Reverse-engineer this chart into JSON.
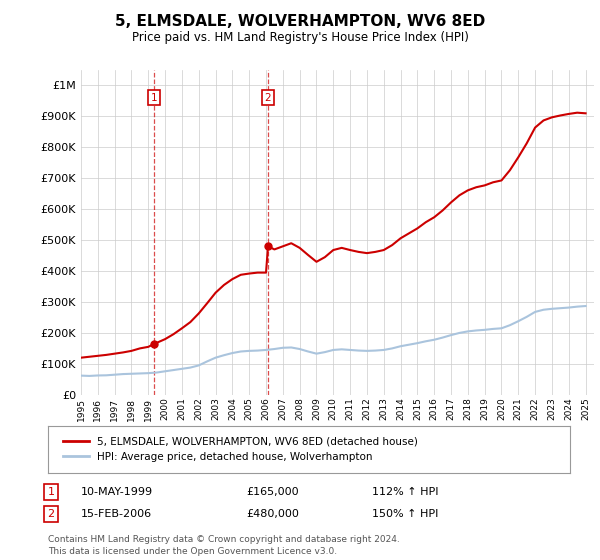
{
  "title": "5, ELMSDALE, WOLVERHAMPTON, WV6 8ED",
  "subtitle": "Price paid vs. HM Land Registry's House Price Index (HPI)",
  "background_color": "#ffffff",
  "grid_color": "#cccccc",
  "hpi_color": "#aac4dd",
  "price_color": "#cc0000",
  "sale1_year": 1999.36,
  "sale1_price": 165000,
  "sale2_year": 2006.12,
  "sale2_price": 480000,
  "legend_label_red": "5, ELMSDALE, WOLVERHAMPTON, WV6 8ED (detached house)",
  "legend_label_blue": "HPI: Average price, detached house, Wolverhampton",
  "table_row1": [
    "1",
    "10-MAY-1999",
    "£165,000",
    "112% ↑ HPI"
  ],
  "table_row2": [
    "2",
    "15-FEB-2006",
    "£480,000",
    "150% ↑ HPI"
  ],
  "footer": "Contains HM Land Registry data © Crown copyright and database right 2024.\nThis data is licensed under the Open Government Licence v3.0.",
  "hpi_data": [
    [
      1995.0,
      62000
    ],
    [
      1995.5,
      61000
    ],
    [
      1996.0,
      62500
    ],
    [
      1996.5,
      63000
    ],
    [
      1997.0,
      65000
    ],
    [
      1997.5,
      67000
    ],
    [
      1998.0,
      68000
    ],
    [
      1998.5,
      69000
    ],
    [
      1999.0,
      70000
    ],
    [
      1999.5,
      72000
    ],
    [
      2000.0,
      76000
    ],
    [
      2000.5,
      80000
    ],
    [
      2001.0,
      84000
    ],
    [
      2001.5,
      88000
    ],
    [
      2002.0,
      95000
    ],
    [
      2002.5,
      108000
    ],
    [
      2003.0,
      120000
    ],
    [
      2003.5,
      128000
    ],
    [
      2004.0,
      135000
    ],
    [
      2004.5,
      140000
    ],
    [
      2005.0,
      142000
    ],
    [
      2005.5,
      143000
    ],
    [
      2006.0,
      145000
    ],
    [
      2006.5,
      148000
    ],
    [
      2007.0,
      152000
    ],
    [
      2007.5,
      153000
    ],
    [
      2008.0,
      148000
    ],
    [
      2008.5,
      140000
    ],
    [
      2009.0,
      133000
    ],
    [
      2009.5,
      138000
    ],
    [
      2010.0,
      145000
    ],
    [
      2010.5,
      147000
    ],
    [
      2011.0,
      145000
    ],
    [
      2011.5,
      143000
    ],
    [
      2012.0,
      142000
    ],
    [
      2012.5,
      143000
    ],
    [
      2013.0,
      145000
    ],
    [
      2013.5,
      150000
    ],
    [
      2014.0,
      157000
    ],
    [
      2014.5,
      162000
    ],
    [
      2015.0,
      167000
    ],
    [
      2015.5,
      173000
    ],
    [
      2016.0,
      178000
    ],
    [
      2016.5,
      185000
    ],
    [
      2017.0,
      193000
    ],
    [
      2017.5,
      200000
    ],
    [
      2018.0,
      205000
    ],
    [
      2018.5,
      208000
    ],
    [
      2019.0,
      210000
    ],
    [
      2019.5,
      213000
    ],
    [
      2020.0,
      215000
    ],
    [
      2020.5,
      225000
    ],
    [
      2021.0,
      238000
    ],
    [
      2021.5,
      252000
    ],
    [
      2022.0,
      268000
    ],
    [
      2022.5,
      275000
    ],
    [
      2023.0,
      278000
    ],
    [
      2023.5,
      280000
    ],
    [
      2024.0,
      282000
    ],
    [
      2024.5,
      285000
    ],
    [
      2025.0,
      287000
    ]
  ],
  "price_data": [
    [
      1995.0,
      120000
    ],
    [
      1995.5,
      123000
    ],
    [
      1996.0,
      126000
    ],
    [
      1996.5,
      129000
    ],
    [
      1997.0,
      133000
    ],
    [
      1997.5,
      137000
    ],
    [
      1998.0,
      142000
    ],
    [
      1998.5,
      150000
    ],
    [
      1999.0,
      155000
    ],
    [
      1999.36,
      165000
    ],
    [
      1999.5,
      168000
    ],
    [
      2000.0,
      180000
    ],
    [
      2000.5,
      196000
    ],
    [
      2001.0,
      215000
    ],
    [
      2001.5,
      235000
    ],
    [
      2002.0,
      263000
    ],
    [
      2002.5,
      296000
    ],
    [
      2003.0,
      330000
    ],
    [
      2003.5,
      355000
    ],
    [
      2004.0,
      374000
    ],
    [
      2004.5,
      388000
    ],
    [
      2005.0,
      392000
    ],
    [
      2005.5,
      395000
    ],
    [
      2006.0,
      395000
    ],
    [
      2006.12,
      480000
    ],
    [
      2006.5,
      470000
    ],
    [
      2007.0,
      480000
    ],
    [
      2007.5,
      490000
    ],
    [
      2008.0,
      475000
    ],
    [
      2008.5,
      452000
    ],
    [
      2009.0,
      430000
    ],
    [
      2009.5,
      445000
    ],
    [
      2010.0,
      468000
    ],
    [
      2010.5,
      475000
    ],
    [
      2011.0,
      468000
    ],
    [
      2011.5,
      462000
    ],
    [
      2012.0,
      458000
    ],
    [
      2012.5,
      462000
    ],
    [
      2013.0,
      468000
    ],
    [
      2013.5,
      484000
    ],
    [
      2014.0,
      506000
    ],
    [
      2014.5,
      522000
    ],
    [
      2015.0,
      538000
    ],
    [
      2015.5,
      558000
    ],
    [
      2016.0,
      574000
    ],
    [
      2016.5,
      596000
    ],
    [
      2017.0,
      622000
    ],
    [
      2017.5,
      645000
    ],
    [
      2018.0,
      661000
    ],
    [
      2018.5,
      671000
    ],
    [
      2019.0,
      677000
    ],
    [
      2019.5,
      687000
    ],
    [
      2020.0,
      693000
    ],
    [
      2020.5,
      726000
    ],
    [
      2021.0,
      768000
    ],
    [
      2021.5,
      813000
    ],
    [
      2022.0,
      864000
    ],
    [
      2022.5,
      887000
    ],
    [
      2023.0,
      897000
    ],
    [
      2023.5,
      903000
    ],
    [
      2024.0,
      908000
    ],
    [
      2024.5,
      912000
    ],
    [
      2025.0,
      910000
    ]
  ]
}
